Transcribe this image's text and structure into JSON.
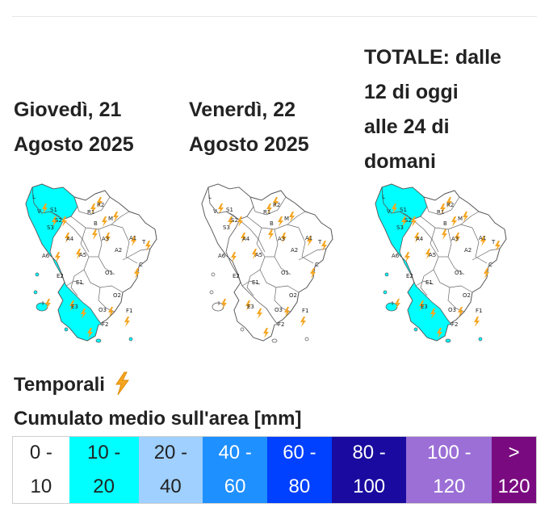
{
  "columns": [
    {
      "title_lines": [
        "Giovedì, 21",
        "Agosto 2025"
      ]
    },
    {
      "title_lines": [
        "Venerdì, 22",
        "Agosto 2025"
      ]
    },
    {
      "title_lines": [
        "TOTALE: dalle",
        "12 di oggi",
        "alle 24 di",
        "domani"
      ]
    }
  ],
  "maps": {
    "zone_labels": [
      "L",
      "V",
      "S1",
      "S2",
      "S3",
      "R1",
      "R2",
      "B",
      "M",
      "A4",
      "A3",
      "A1",
      "T",
      "A6",
      "A5",
      "A2",
      "C",
      "O1",
      "E2",
      "E1",
      "I",
      "E3",
      "O2",
      "O3",
      "F1",
      "F2"
    ],
    "map_day1": {
      "highlight_color": "#00ffff",
      "thunderstorm_icons": true
    },
    "map_day2": {
      "highlight_color": "#ffffff",
      "thunderstorm_icons": true
    },
    "map_total": {
      "highlight_color": "#00ffff",
      "thunderstorm_icons": true
    }
  },
  "section": {
    "storm_label": "Temporali",
    "storm_icon": "lightning-bolt-icon",
    "rain_title": "Cumulato medio sull'area [mm]"
  },
  "legend": [
    {
      "top": "0 -",
      "bottom": "10",
      "color": "#ffffff",
      "text_color": "#222222"
    },
    {
      "top": "10 -",
      "bottom": "20",
      "color": "#00ffff",
      "text_color": "#222222"
    },
    {
      "top": "20 -",
      "bottom": "40",
      "color": "#9fd0ff",
      "text_color": "#222222"
    },
    {
      "top": "40 -",
      "bottom": "60",
      "color": "#1e90ff",
      "text_color": "#ffffff"
    },
    {
      "top": "60 -",
      "bottom": "80",
      "color": "#0040ff",
      "text_color": "#ffffff"
    },
    {
      "top": "80 -",
      "bottom": "100",
      "color": "#1a0aa0",
      "text_color": "#ffffff"
    },
    {
      "top": "100 -",
      "bottom": "120",
      "color": "#9b6fd6",
      "text_color": "#ffffff"
    },
    {
      "top": ">",
      "bottom": "120",
      "color": "#7a0a80",
      "text_color": "#ffffff"
    }
  ]
}
